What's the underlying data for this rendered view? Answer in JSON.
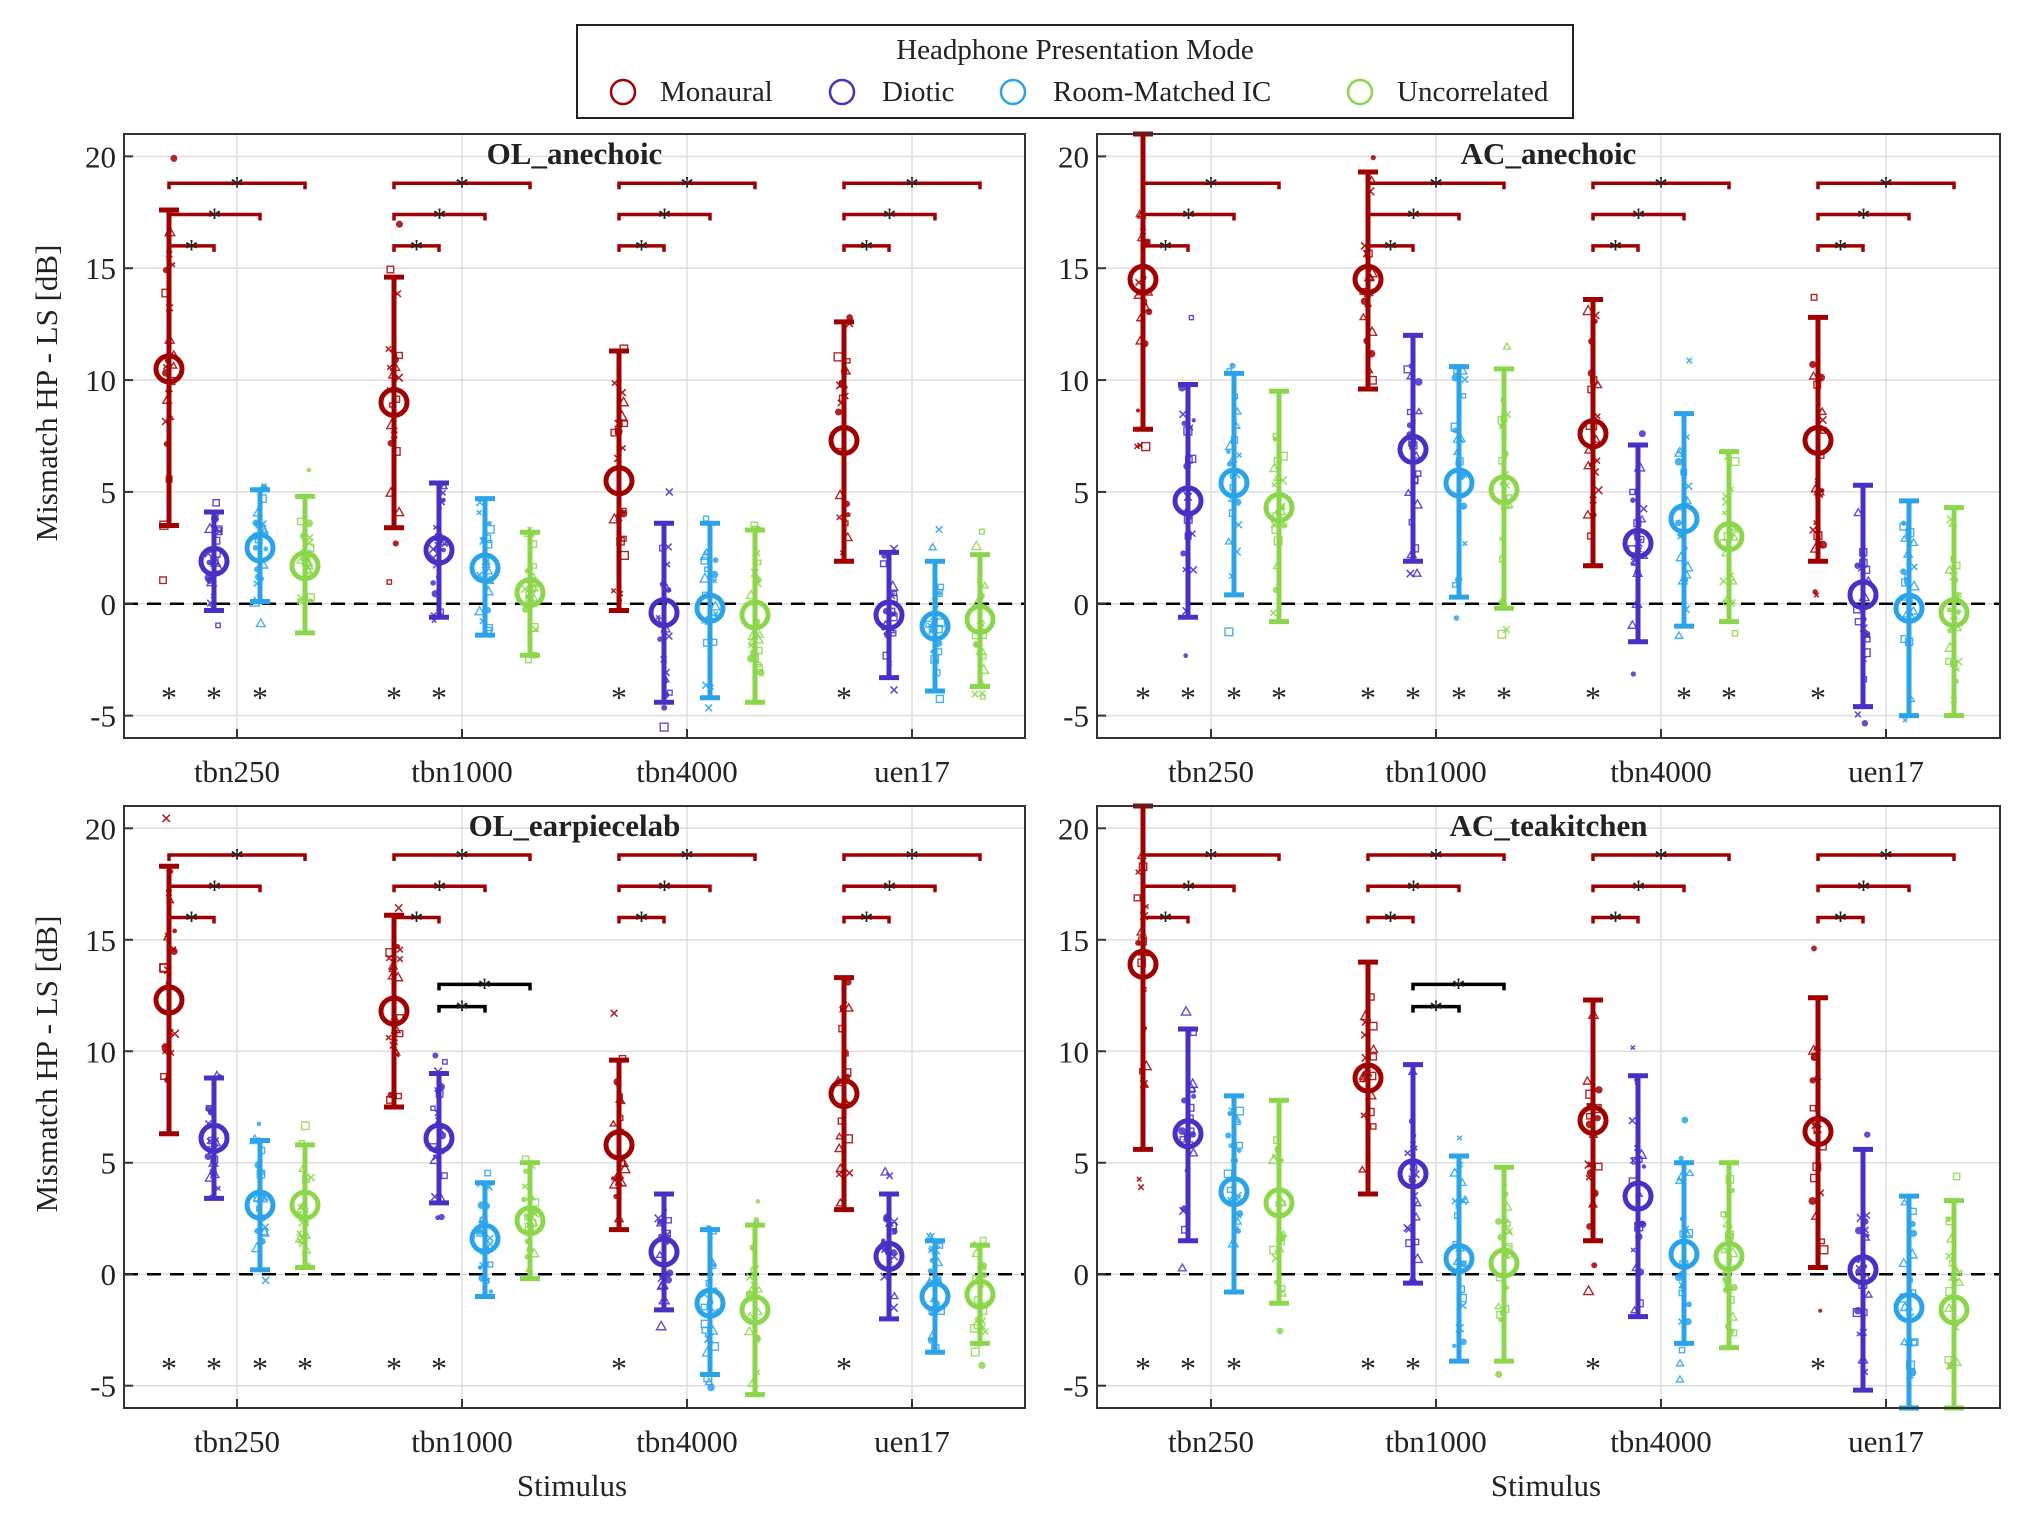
{
  "legend": {
    "title": "Headphone Presentation Mode",
    "entries": [
      "Monaural",
      "Diotic",
      "Room-Matched IC",
      "Uncorrelated"
    ]
  },
  "colors": {
    "Monaural": "#a10000",
    "Diotic": "#4a2fc4",
    "Room-Matched IC": "#2aa3e8",
    "Uncorrelated": "#8cd64c",
    "axis": "#333333",
    "grid": "#dddddd",
    "bracket_black": "#000000"
  },
  "axes_text": {
    "ylabel": "Mismatch HP - LS [dB]",
    "xlabel": "Stimulus",
    "yticks": [
      "-5",
      "0",
      "5",
      "10",
      "15",
      "20"
    ],
    "categories": [
      "tbn250",
      "tbn1000",
      "tbn4000",
      "uen17"
    ],
    "star": "*"
  },
  "chart_data": [
    {
      "type": "errorbar-scatter",
      "title": "OL_anechoic",
      "xlabel": "",
      "ylabel": "Mismatch HP - LS [dB]",
      "ylim": [
        -6,
        21
      ],
      "categories": [
        "tbn250",
        "tbn1000",
        "tbn4000",
        "uen17"
      ],
      "series": [
        {
          "name": "Monaural",
          "mean": [
            10.5,
            9.0,
            5.5,
            7.3
          ],
          "low": [
            3.5,
            3.4,
            -0.3,
            1.9
          ],
          "high": [
            17.6,
            14.6,
            11.3,
            12.6
          ]
        },
        {
          "name": "Diotic",
          "mean": [
            1.9,
            2.4,
            -0.4,
            -0.5
          ],
          "low": [
            -0.3,
            -0.6,
            -4.4,
            -3.3
          ],
          "high": [
            4.1,
            5.4,
            3.6,
            2.3
          ]
        },
        {
          "name": "Room-Matched IC",
          "mean": [
            2.5,
            1.6,
            -0.2,
            -1.0
          ],
          "low": [
            0.1,
            -1.4,
            -4.2,
            -3.9
          ],
          "high": [
            5.1,
            4.7,
            3.6,
            1.9
          ]
        },
        {
          "name": "Uncorrelated",
          "mean": [
            1.7,
            0.5,
            -0.5,
            -0.7
          ],
          "low": [
            -1.3,
            -2.3,
            -4.4,
            -3.7
          ],
          "high": [
            4.8,
            3.2,
            3.3,
            2.2
          ]
        }
      ],
      "red_brackets": [
        true,
        true,
        true,
        true
      ],
      "black_brackets": [
        false,
        false,
        false,
        false
      ],
      "stars_below": [
        [
          true,
          true,
          true,
          false
        ],
        [
          true,
          true,
          false,
          false
        ],
        [
          true,
          false,
          false,
          false
        ],
        [
          true,
          false,
          false,
          false
        ]
      ]
    },
    {
      "type": "errorbar-scatter",
      "title": "AC_anechoic",
      "xlabel": "",
      "ylabel": "",
      "ylim": [
        -6,
        21
      ],
      "categories": [
        "tbn250",
        "tbn1000",
        "tbn4000",
        "uen17"
      ],
      "series": [
        {
          "name": "Monaural",
          "mean": [
            14.5,
            14.5,
            7.6,
            7.3
          ],
          "low": [
            7.8,
            9.6,
            1.7,
            1.9
          ],
          "high": [
            21,
            19.3,
            13.6,
            12.8
          ]
        },
        {
          "name": "Diotic",
          "mean": [
            4.6,
            6.9,
            2.7,
            0.4
          ],
          "low": [
            -0.6,
            1.9,
            -1.7,
            -4.6
          ],
          "high": [
            9.8,
            12.0,
            7.1,
            5.3
          ]
        },
        {
          "name": "Room-Matched IC",
          "mean": [
            5.4,
            5.4,
            3.8,
            -0.2
          ],
          "low": [
            0.4,
            0.3,
            -1.0,
            -5.0
          ],
          "high": [
            10.3,
            10.6,
            8.5,
            4.6
          ]
        },
        {
          "name": "Uncorrelated",
          "mean": [
            4.3,
            5.1,
            3.0,
            -0.4
          ],
          "low": [
            -0.8,
            -0.2,
            -0.8,
            -5.0
          ],
          "high": [
            9.5,
            10.5,
            6.8,
            4.3
          ]
        }
      ],
      "red_brackets": [
        true,
        true,
        true,
        true
      ],
      "black_brackets": [
        false,
        false,
        false,
        false
      ],
      "stars_below": [
        [
          true,
          true,
          true,
          true
        ],
        [
          true,
          true,
          true,
          true
        ],
        [
          true,
          false,
          true,
          true
        ],
        [
          true,
          false,
          false,
          false
        ]
      ]
    },
    {
      "type": "errorbar-scatter",
      "title": "OL_earpiecelab",
      "xlabel": "Stimulus",
      "ylabel": "Mismatch HP - LS [dB]",
      "ylim": [
        -6,
        21
      ],
      "categories": [
        "tbn250",
        "tbn1000",
        "tbn4000",
        "uen17"
      ],
      "series": [
        {
          "name": "Monaural",
          "mean": [
            12.3,
            11.8,
            5.8,
            8.1
          ],
          "low": [
            6.3,
            7.5,
            2.0,
            2.9
          ],
          "high": [
            18.3,
            16.1,
            9.6,
            13.3
          ]
        },
        {
          "name": "Diotic",
          "mean": [
            6.1,
            6.1,
            1.0,
            0.8
          ],
          "low": [
            3.4,
            3.2,
            -1.6,
            -2.0
          ],
          "high": [
            8.8,
            9.0,
            3.6,
            3.6
          ]
        },
        {
          "name": "Room-Matched IC",
          "mean": [
            3.1,
            1.6,
            -1.3,
            -1.0
          ],
          "low": [
            0.2,
            -1.0,
            -4.5,
            -3.5
          ],
          "high": [
            6.0,
            4.1,
            2.0,
            1.5
          ]
        },
        {
          "name": "Uncorrelated",
          "mean": [
            3.1,
            2.4,
            -1.6,
            -0.9
          ],
          "low": [
            0.3,
            -0.2,
            -5.4,
            -3.1
          ],
          "high": [
            5.8,
            5.0,
            2.2,
            1.3
          ]
        }
      ],
      "red_brackets": [
        true,
        true,
        true,
        true
      ],
      "black_brackets": [
        false,
        true,
        false,
        false
      ],
      "stars_below": [
        [
          true,
          true,
          true,
          true
        ],
        [
          true,
          true,
          false,
          false
        ],
        [
          true,
          false,
          false,
          false
        ],
        [
          true,
          false,
          false,
          false
        ]
      ]
    },
    {
      "type": "errorbar-scatter",
      "title": "AC_teakitchen",
      "xlabel": "Stimulus",
      "ylabel": "",
      "ylim": [
        -6,
        21
      ],
      "categories": [
        "tbn250",
        "tbn1000",
        "tbn4000",
        "uen17"
      ],
      "series": [
        {
          "name": "Monaural",
          "mean": [
            13.9,
            8.8,
            6.9,
            6.4
          ],
          "low": [
            5.6,
            3.6,
            1.5,
            0.3
          ],
          "high": [
            21,
            14.0,
            12.3,
            12.4
          ]
        },
        {
          "name": "Diotic",
          "mean": [
            6.3,
            4.5,
            3.5,
            0.2
          ],
          "low": [
            1.5,
            -0.4,
            -1.9,
            -5.2
          ],
          "high": [
            11.0,
            9.4,
            8.9,
            5.6
          ]
        },
        {
          "name": "Room-Matched IC",
          "mean": [
            3.7,
            0.7,
            0.9,
            -1.5
          ],
          "low": [
            -0.8,
            -3.9,
            -3.1,
            -6
          ],
          "high": [
            8.0,
            5.3,
            5.0,
            3.5
          ]
        },
        {
          "name": "Uncorrelated",
          "mean": [
            3.2,
            0.5,
            0.8,
            -1.6
          ],
          "low": [
            -1.3,
            -3.9,
            -3.3,
            -6
          ],
          "high": [
            7.8,
            4.8,
            5.0,
            3.3
          ]
        }
      ],
      "red_brackets": [
        true,
        true,
        true,
        true
      ],
      "black_brackets": [
        false,
        true,
        false,
        false
      ],
      "stars_below": [
        [
          true,
          true,
          true,
          false
        ],
        [
          true,
          true,
          false,
          false
        ],
        [
          true,
          false,
          false,
          false
        ],
        [
          true,
          false,
          false,
          false
        ]
      ]
    }
  ]
}
